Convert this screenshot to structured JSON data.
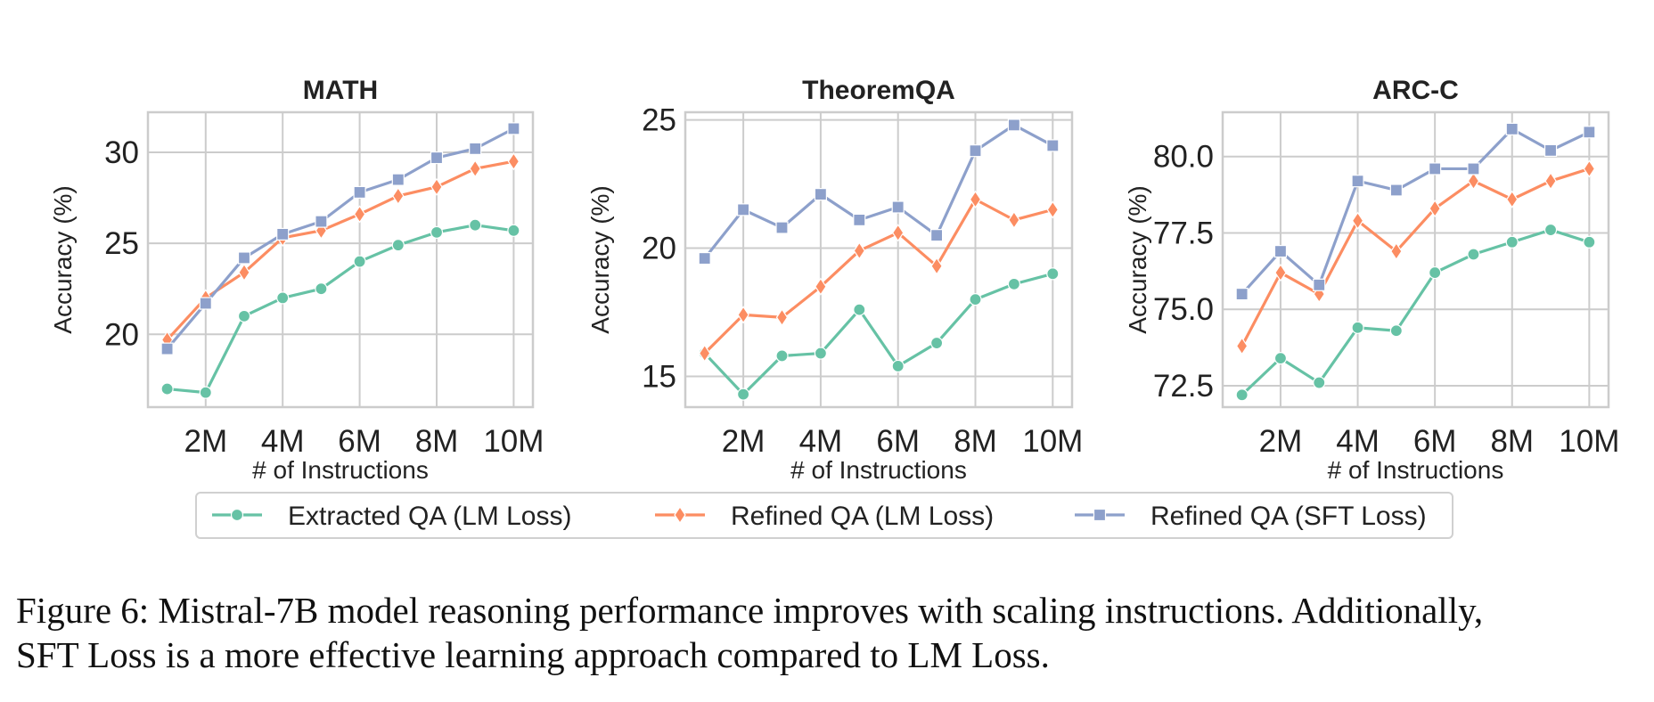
{
  "chart_data": [
    {
      "type": "line",
      "title": "MATH",
      "xlabel": "# of Instructions",
      "ylabel": "Accuracy (%)",
      "x": [
        1,
        2,
        3,
        4,
        5,
        6,
        7,
        8,
        9,
        10
      ],
      "xticks": [
        2,
        4,
        6,
        8,
        10
      ],
      "xticklabels": [
        "2M",
        "4M",
        "6M",
        "8M",
        "10M"
      ],
      "xlim": [
        0.5,
        10.5
      ],
      "ylim": [
        16,
        32.2
      ],
      "yticks": [
        20,
        25,
        30
      ],
      "yticklabels": [
        "20",
        "25",
        "30"
      ],
      "grid": true,
      "series": [
        {
          "name": "Extracted QA (LM Loss)",
          "values": [
            17.0,
            16.8,
            21.0,
            22.0,
            22.5,
            24.0,
            24.9,
            25.6,
            26.0,
            25.7
          ]
        },
        {
          "name": "Refined QA (LM Loss)",
          "values": [
            19.7,
            22.0,
            23.4,
            25.3,
            25.7,
            26.6,
            27.6,
            28.1,
            29.1,
            29.5
          ]
        },
        {
          "name": "Refined QA (SFT Loss)",
          "values": [
            19.2,
            21.7,
            24.2,
            25.5,
            26.2,
            27.8,
            28.5,
            29.7,
            30.2,
            31.3
          ]
        }
      ]
    },
    {
      "type": "line",
      "title": "TheoremQA",
      "xlabel": "# of Instructions",
      "ylabel": "Accuracy (%)",
      "x": [
        1,
        2,
        3,
        4,
        5,
        6,
        7,
        8,
        9,
        10
      ],
      "xticks": [
        2,
        4,
        6,
        8,
        10
      ],
      "xticklabels": [
        "2M",
        "4M",
        "6M",
        "8M",
        "10M"
      ],
      "xlim": [
        0.5,
        10.5
      ],
      "ylim": [
        13.8,
        25.3
      ],
      "yticks": [
        15,
        20,
        25
      ],
      "yticklabels": [
        "15",
        "20",
        "25"
      ],
      "grid": true,
      "series": [
        {
          "name": "Extracted QA (LM Loss)",
          "values": [
            15.9,
            14.3,
            15.8,
            15.9,
            17.6,
            15.4,
            16.3,
            18.0,
            18.6,
            19.0
          ]
        },
        {
          "name": "Refined QA (LM Loss)",
          "values": [
            15.9,
            17.4,
            17.3,
            18.5,
            19.9,
            20.6,
            19.3,
            21.9,
            21.1,
            21.5
          ]
        },
        {
          "name": "Refined QA (SFT Loss)",
          "values": [
            19.6,
            21.5,
            20.8,
            22.1,
            21.1,
            21.6,
            20.5,
            23.8,
            24.8,
            24.0
          ]
        }
      ]
    },
    {
      "type": "line",
      "title": "ARC-C",
      "xlabel": "# of Instructions",
      "ylabel": "Accuracy (%)",
      "x": [
        1,
        2,
        3,
        4,
        5,
        6,
        7,
        8,
        9,
        10
      ],
      "xticks": [
        2,
        4,
        6,
        8,
        10
      ],
      "xticklabels": [
        "2M",
        "4M",
        "6M",
        "8M",
        "10M"
      ],
      "xlim": [
        0.5,
        10.5
      ],
      "ylim": [
        71.8,
        81.45
      ],
      "yticks": [
        72.5,
        75.0,
        77.5,
        80.0
      ],
      "yticklabels": [
        "72.5",
        "75.0",
        "77.5",
        "80.0"
      ],
      "grid": true,
      "series": [
        {
          "name": "Extracted QA (LM Loss)",
          "values": [
            72.2,
            73.4,
            72.6,
            74.4,
            74.3,
            76.2,
            76.8,
            77.2,
            77.6,
            77.2
          ]
        },
        {
          "name": "Refined QA (LM Loss)",
          "values": [
            73.8,
            76.2,
            75.5,
            77.9,
            76.9,
            78.3,
            79.2,
            78.6,
            79.2,
            79.6
          ]
        },
        {
          "name": "Refined QA (SFT Loss)",
          "values": [
            75.5,
            76.9,
            75.8,
            79.2,
            78.9,
            79.6,
            79.6,
            80.9,
            80.2,
            80.8
          ]
        }
      ]
    }
  ],
  "legend": {
    "placement": "bottom-center",
    "items": [
      {
        "label": "Extracted QA (LM Loss)",
        "color": "#66c2a5",
        "marker": "circle"
      },
      {
        "label": "Refined QA (LM Loss)",
        "color": "#fc8d62",
        "marker": "diamond"
      },
      {
        "label": "Refined QA (SFT Loss)",
        "color": "#8da0cb",
        "marker": "square"
      }
    ]
  },
  "colors": {
    "series": [
      "#66c2a5",
      "#fc8d62",
      "#8da0cb"
    ],
    "grid": "#cccccc",
    "frame": "#cccccc"
  },
  "caption": {
    "line1": "Figure 6: Mistral-7B model reasoning performance improves with scaling instructions. Additionally,",
    "line2": "SFT Loss is a more effective learning approach compared to LM Loss."
  }
}
